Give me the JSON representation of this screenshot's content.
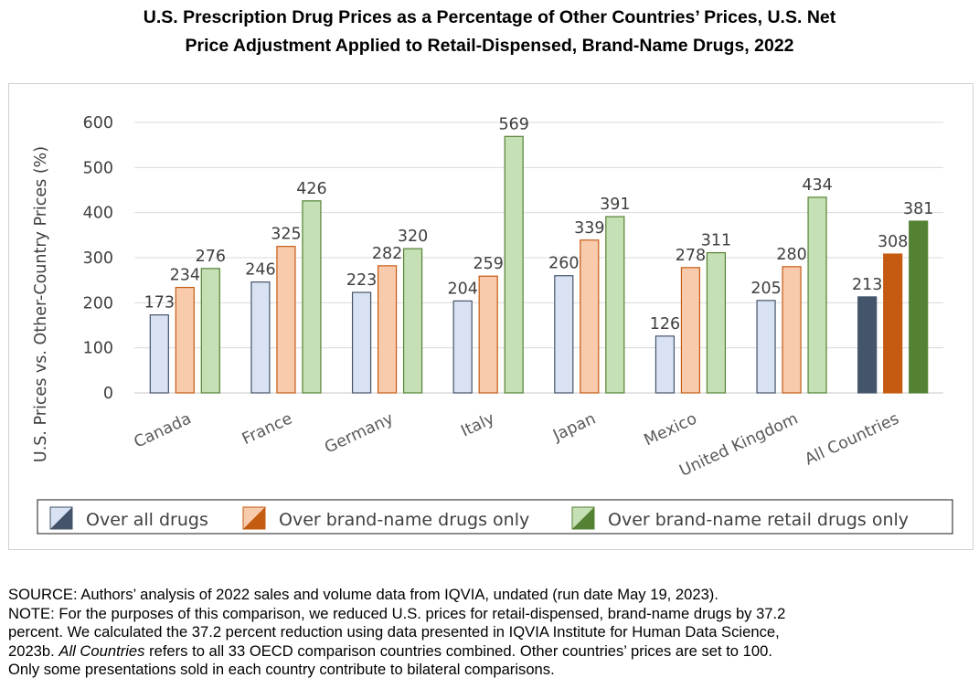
{
  "title": {
    "line1": "U.S. Prescription Drug Prices as a Percentage of Other Countries’ Prices, U.S. Net",
    "line2": "Price Adjustment Applied to Retail-Dispensed, Brand-Name Drugs, 2022"
  },
  "chart_data": {
    "type": "bar",
    "ylabel": "U.S. Prices vs. Other-Country Prices (%)",
    "xlabel": "",
    "ylim": [
      0,
      600
    ],
    "yticks": [
      0,
      100,
      200,
      300,
      400,
      500,
      600
    ],
    "grid": true,
    "legend_position": "bottom",
    "categories": [
      "Canada",
      "France",
      "Germany",
      "Italy",
      "Japan",
      "Mexico",
      "United Kingdom",
      "All Countries"
    ],
    "series": [
      {
        "name": "Over all drugs",
        "values": [
          173,
          246,
          223,
          204,
          260,
          126,
          205,
          213
        ],
        "fill": "#d9e2f3",
        "stroke": "#44546a",
        "fill_all": "#44546a"
      },
      {
        "name": "Over brand-name drugs only",
        "values": [
          234,
          325,
          282,
          259,
          339,
          278,
          280,
          308
        ],
        "fill": "#f8cbad",
        "stroke": "#c55a11",
        "fill_all": "#c55a11"
      },
      {
        "name": "Over brand-name retail drugs only",
        "values": [
          276,
          426,
          320,
          569,
          391,
          311,
          434,
          381
        ],
        "fill": "#c5e0b4",
        "stroke": "#548235",
        "fill_all": "#548235"
      }
    ]
  },
  "notes": {
    "source": "SOURCE: Authors’ analysis of 2022 sales and volume data from IQVIA, undated (run date May 19, 2023).",
    "note1": "NOTE: For the purposes of this comparison, we reduced U.S. prices for retail-dispensed, brand-name drugs by 37.2",
    "note2": "percent. We calculated the 37.2 percent reduction using data presented in IQVIA Institute for Human Data Science,",
    "note3_a": "2023b. ",
    "note3_em": "All Countries",
    "note3_b": " refers to all 33 OECD comparison countries combined. Other countries’ prices are set to 100.",
    "note4": "Only some presentations sold in each country contribute to bilateral comparisons."
  }
}
